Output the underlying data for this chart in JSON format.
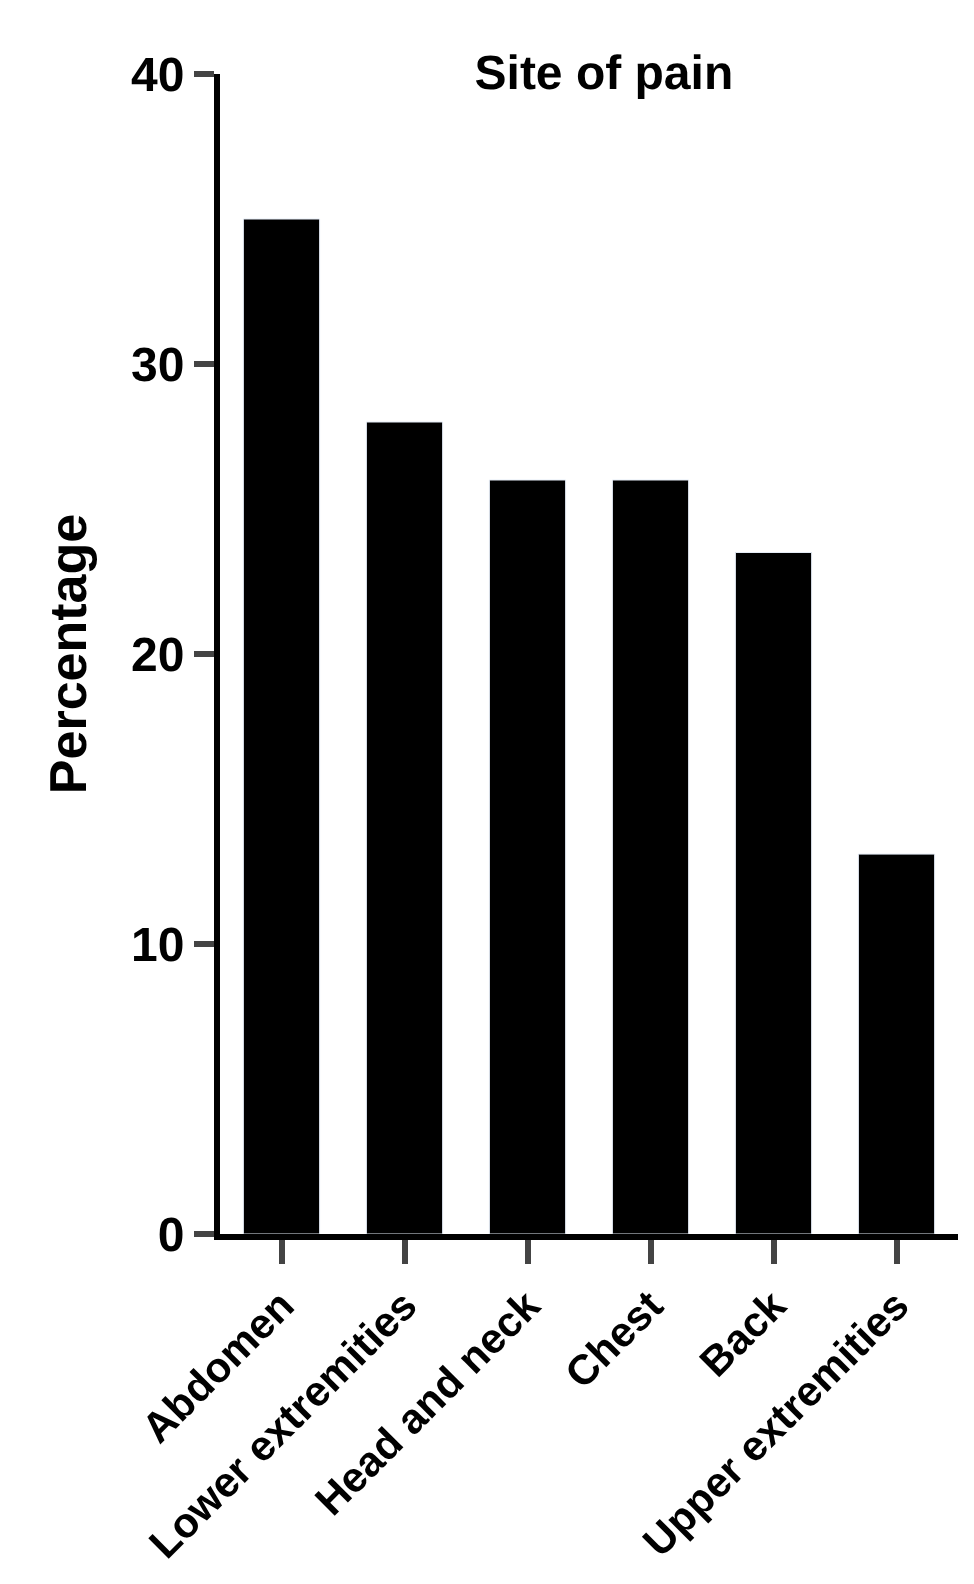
{
  "chart_data": {
    "type": "bar",
    "title": "Site of pain",
    "ylabel": "Percentage",
    "categories": [
      "Abdomen",
      "Lower extremities",
      "Head and neck",
      "Chest",
      "Back",
      "Upper extremities"
    ],
    "values": [
      35,
      28,
      26,
      26,
      23.5,
      13.1
    ],
    "color": "#000000",
    "ylim": [
      0,
      40
    ],
    "yticks": [
      0,
      10,
      20,
      30,
      40
    ]
  }
}
